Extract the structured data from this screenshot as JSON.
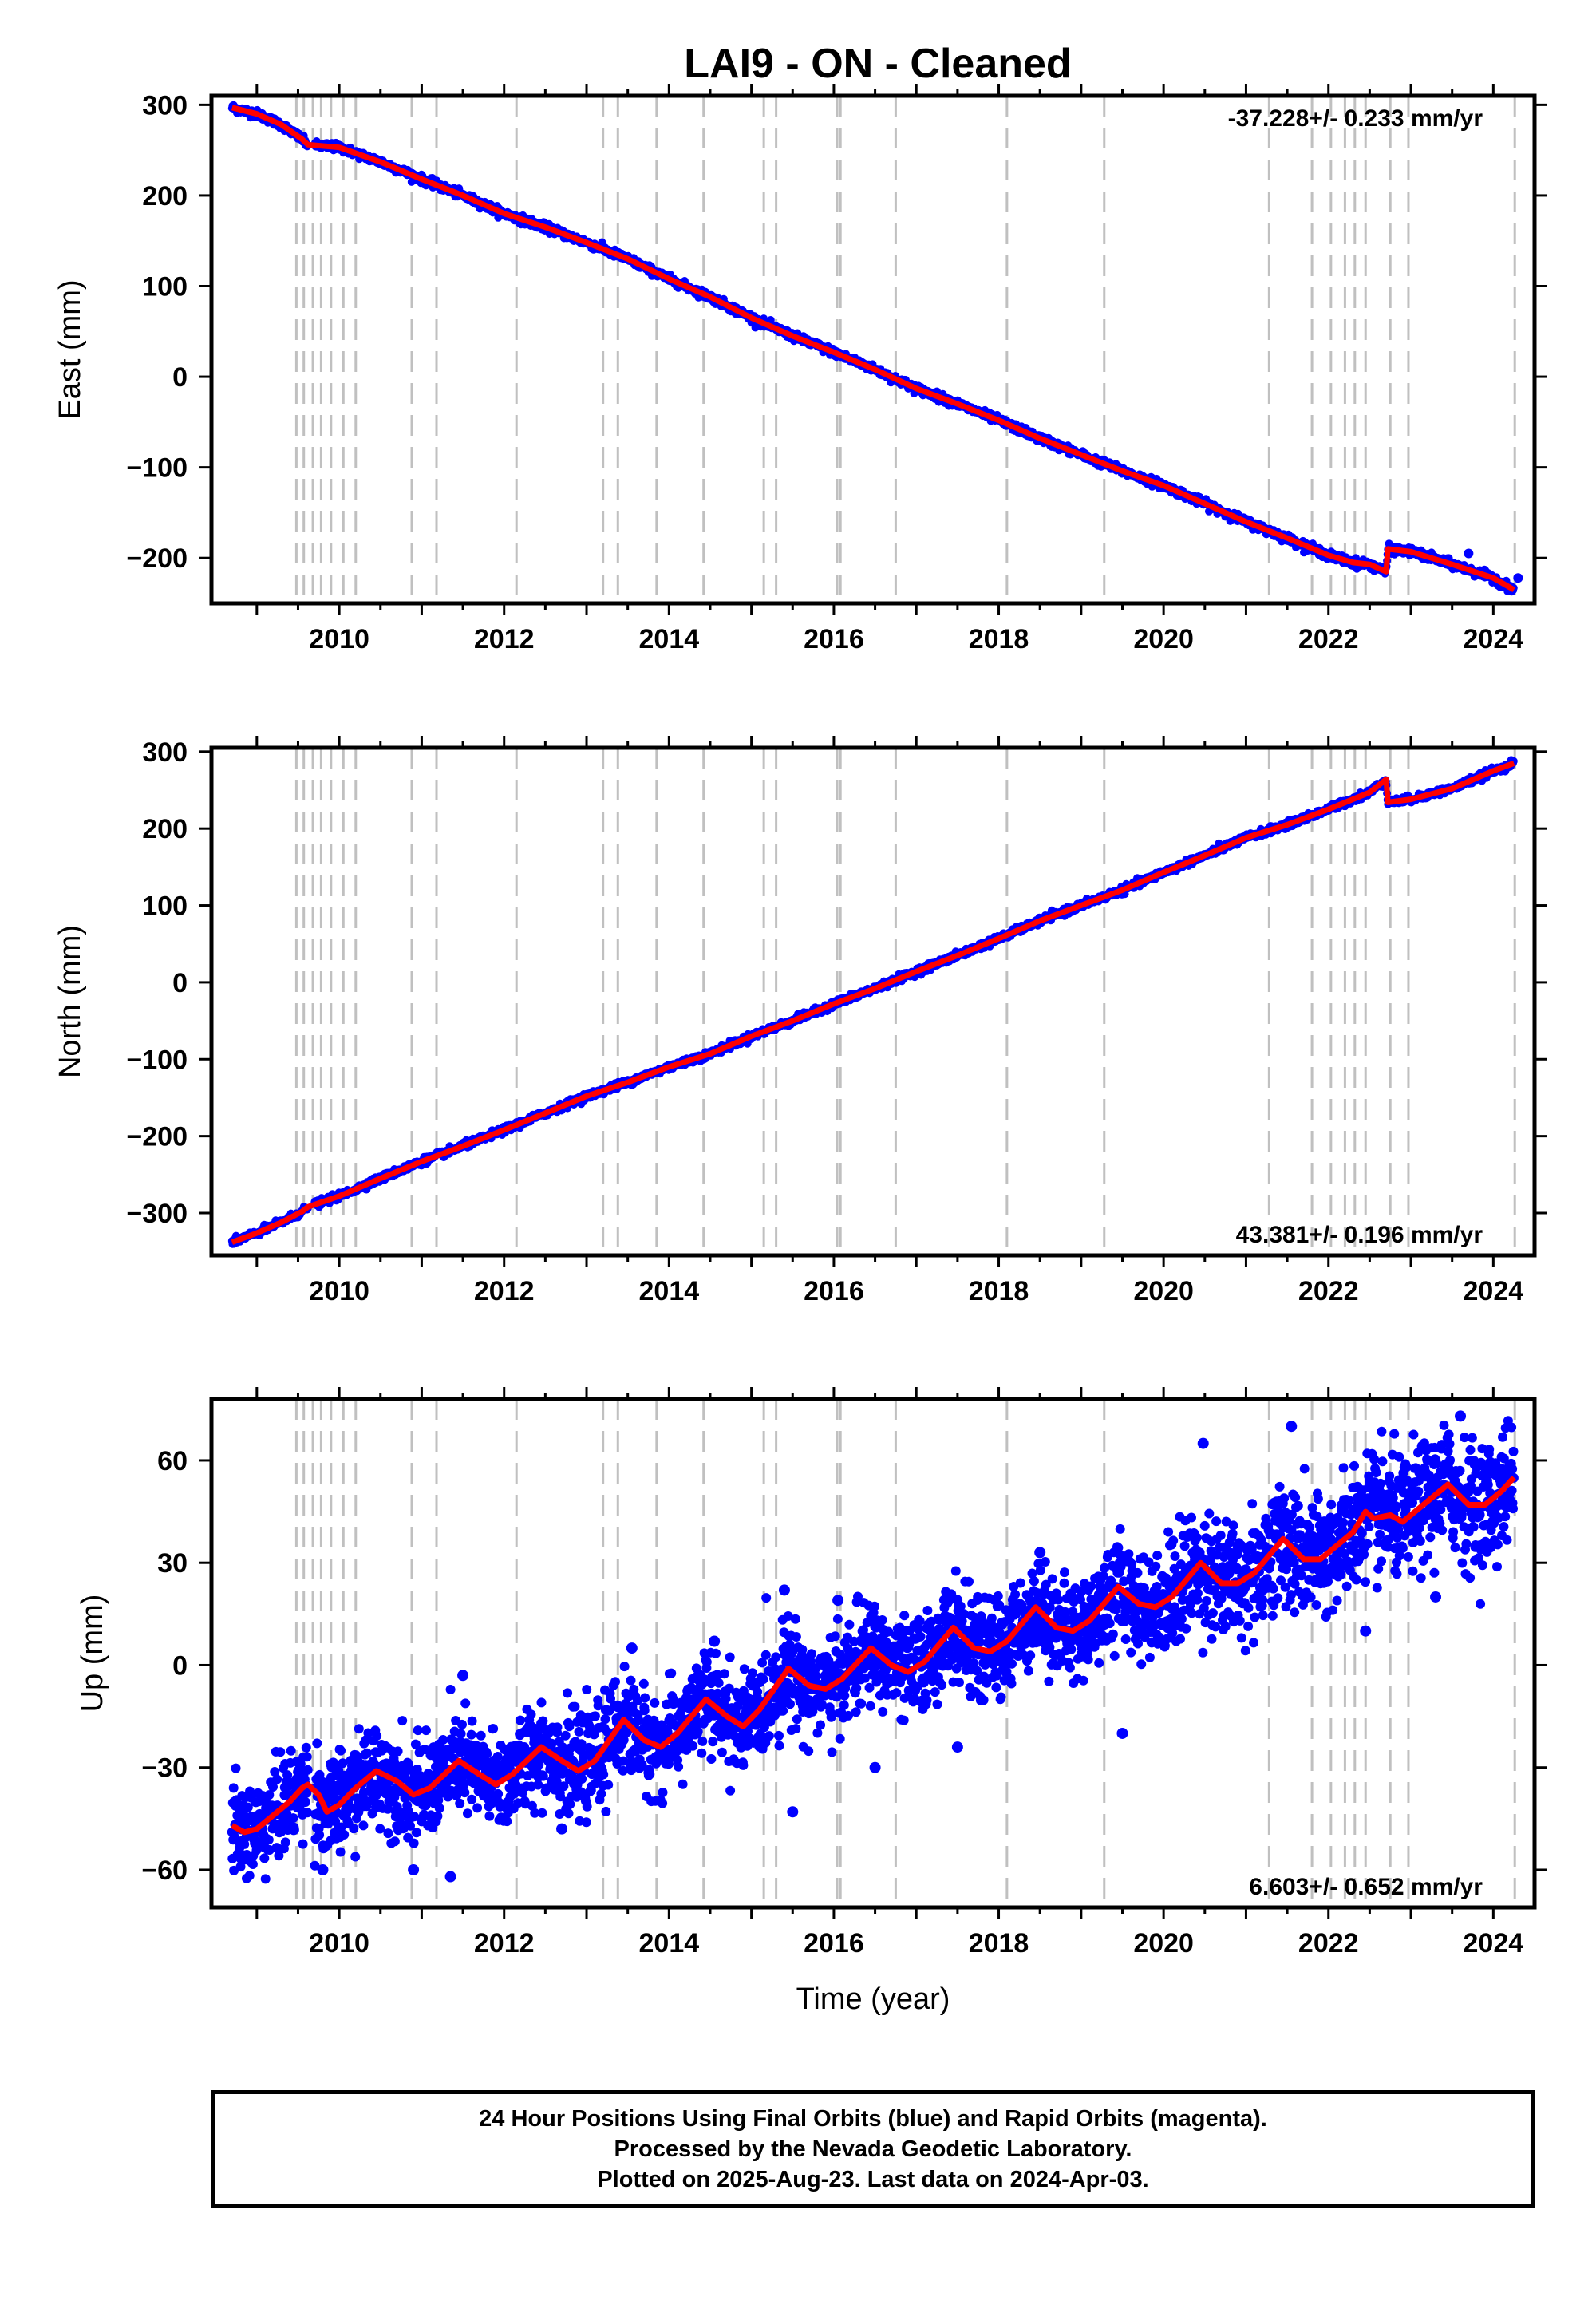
{
  "title": "LAI9  - ON - Cleaned",
  "colors": {
    "points": "#0000ff",
    "model": "#ff0000",
    "steps": "#c0c0c0",
    "frame": "#000000"
  },
  "footer": {
    "line1": "24 Hour Positions Using Final Orbits (blue) and Rapid Orbits (magenta).",
    "line2": "Processed by the Nevada Geodetic Laboratory.",
    "line3": "Plotted on 2025-Aug-23. Last data on 2024-Apr-03."
  },
  "chart_data": [
    {
      "type": "scatter",
      "component": "east",
      "ylabel": "East (mm)",
      "xlabel": "",
      "xlim": [
        2008.45,
        2024.5
      ],
      "ylim": [
        -250,
        310
      ],
      "x_ticks": [
        2010,
        2012,
        2014,
        2016,
        2018,
        2020,
        2022,
        2024
      ],
      "x_tick_labels": [
        "2010",
        "2012",
        "2014",
        "2016",
        "2018",
        "2020",
        "2022",
        "2024"
      ],
      "y_ticks": [
        300,
        200,
        100,
        0,
        -100,
        -200
      ],
      "y_tick_labels": [
        "300",
        "200",
        "100",
        "0",
        "−100",
        "−200"
      ],
      "rate_label": "-37.228+/- 0.233 mm/yr",
      "rate_label_position": "top-right",
      "x": [
        2008.7,
        2009.0,
        2009.3,
        2009.55,
        2009.62,
        2010.0,
        2010.5,
        2011.0,
        2011.5,
        2012.0,
        2012.5,
        2013.0,
        2013.5,
        2014.0,
        2014.5,
        2015.0,
        2015.5,
        2016.0,
        2016.5,
        2017.0,
        2017.5,
        2018.0,
        2018.5,
        2019.0,
        2019.5,
        2020.0,
        2020.5,
        2021.0,
        2021.5,
        2022.0,
        2022.3,
        2022.5,
        2022.7,
        2022.72,
        2023.0,
        2023.5,
        2024.0,
        2024.25
      ],
      "y": [
        297,
        290,
        278,
        262,
        256,
        253,
        237,
        218,
        200,
        180,
        165,
        148,
        130,
        108,
        88,
        65,
        45,
        27,
        8,
        -13,
        -30,
        -48,
        -68,
        -86,
        -104,
        -120,
        -140,
        -160,
        -178,
        -197,
        -205,
        -207,
        -215,
        -190,
        -193,
        -207,
        -222,
        -235
      ],
      "model": {
        "name": "",
        "x": [
          2008.7,
          2009.0,
          2009.3,
          2009.55,
          2009.62,
          2010.0,
          2010.5,
          2011.0,
          2011.5,
          2012.0,
          2012.5,
          2013.0,
          2013.5,
          2014.0,
          2014.5,
          2015.0,
          2015.5,
          2016.0,
          2016.5,
          2017.0,
          2017.5,
          2018.0,
          2018.5,
          2019.0,
          2019.5,
          2020.0,
          2020.5,
          2021.0,
          2021.5,
          2022.0,
          2022.3,
          2022.5,
          2022.7,
          2022.72,
          2023.0,
          2023.5,
          2024.0,
          2024.25
        ],
        "y": [
          297,
          290,
          278,
          262,
          256,
          253,
          237,
          218,
          200,
          180,
          165,
          148,
          130,
          108,
          88,
          65,
          45,
          27,
          8,
          -13,
          -30,
          -48,
          -68,
          -86,
          -104,
          -120,
          -140,
          -160,
          -178,
          -197,
          -205,
          -207,
          -215,
          -190,
          -193,
          -207,
          -222,
          -235
        ]
      },
      "outliers": [
        {
          "x": 2023.7,
          "y": -195
        },
        {
          "x": 2024.3,
          "y": -222
        }
      ],
      "step_epochs": [
        2009.48,
        2009.57,
        2009.68,
        2009.78,
        2009.9,
        2010.05,
        2010.2,
        2010.88,
        2011.18,
        2012.15,
        2013.2,
        2013.38,
        2013.85,
        2014.42,
        2015.15,
        2015.3,
        2016.04,
        2016.08,
        2016.75,
        2018.1,
        2019.28,
        2021.28,
        2021.8,
        2022.03,
        2022.2,
        2022.32,
        2022.45,
        2022.75,
        2022.97,
        2024.26
      ],
      "grid": false
    },
    {
      "type": "scatter",
      "component": "north",
      "ylabel": "North (mm)",
      "xlabel": "",
      "xlim": [
        2008.45,
        2024.5
      ],
      "ylim": [
        -355,
        305
      ],
      "x_ticks": [
        2010,
        2012,
        2014,
        2016,
        2018,
        2020,
        2022,
        2024
      ],
      "x_tick_labels": [
        "2010",
        "2012",
        "2014",
        "2016",
        "2018",
        "2020",
        "2022",
        "2024"
      ],
      "y_ticks": [
        300,
        200,
        100,
        0,
        -100,
        -200,
        -300
      ],
      "y_tick_labels": [
        "300",
        "200",
        "100",
        "0",
        "−100",
        "−200",
        "−300"
      ],
      "rate_label": "43.381+/- 0.196 mm/yr",
      "rate_label_position": "bottom-right",
      "x": [
        2008.7,
        2009.0,
        2009.3,
        2009.55,
        2009.62,
        2010.0,
        2010.5,
        2011.0,
        2011.5,
        2012.0,
        2012.5,
        2013.0,
        2013.5,
        2014.0,
        2014.5,
        2015.0,
        2015.5,
        2016.0,
        2016.5,
        2017.0,
        2017.5,
        2018.0,
        2018.5,
        2019.0,
        2019.5,
        2020.0,
        2020.5,
        2021.0,
        2021.5,
        2022.0,
        2022.5,
        2022.7,
        2022.72,
        2023.0,
        2023.5,
        2024.0,
        2024.25
      ],
      "y": [
        -338,
        -326,
        -312,
        -298,
        -292,
        -278,
        -255,
        -233,
        -213,
        -192,
        -170,
        -148,
        -130,
        -110,
        -93,
        -70,
        -50,
        -28,
        -8,
        14,
        35,
        57,
        80,
        100,
        120,
        143,
        165,
        188,
        205,
        225,
        247,
        264,
        234,
        238,
        252,
        275,
        285
      ],
      "model": {
        "name": "",
        "x": [
          2008.7,
          2009.0,
          2009.3,
          2009.55,
          2009.62,
          2010.0,
          2010.5,
          2011.0,
          2011.5,
          2012.0,
          2012.5,
          2013.0,
          2013.5,
          2014.0,
          2014.5,
          2015.0,
          2015.5,
          2016.0,
          2016.5,
          2017.0,
          2017.5,
          2018.0,
          2018.5,
          2019.0,
          2019.5,
          2020.0,
          2020.5,
          2021.0,
          2021.5,
          2022.0,
          2022.5,
          2022.7,
          2022.72,
          2023.0,
          2023.5,
          2024.0,
          2024.25
        ],
        "y": [
          -338,
          -326,
          -312,
          -298,
          -292,
          -278,
          -255,
          -233,
          -213,
          -192,
          -170,
          -148,
          -130,
          -110,
          -93,
          -70,
          -50,
          -28,
          -8,
          14,
          35,
          57,
          80,
          100,
          120,
          143,
          165,
          188,
          205,
          225,
          247,
          264,
          234,
          238,
          252,
          275,
          285
        ]
      },
      "outliers": [],
      "step_epochs": [
        2009.48,
        2009.57,
        2009.68,
        2009.78,
        2009.9,
        2010.05,
        2010.2,
        2010.88,
        2011.18,
        2012.15,
        2013.2,
        2013.38,
        2013.85,
        2014.42,
        2015.15,
        2015.3,
        2016.04,
        2016.08,
        2016.75,
        2018.1,
        2019.28,
        2021.28,
        2021.8,
        2022.03,
        2022.2,
        2022.32,
        2022.45,
        2022.75,
        2022.97,
        2024.26
      ],
      "grid": false
    },
    {
      "type": "scatter",
      "component": "up",
      "ylabel": "Up (mm)",
      "xlabel": "Time (year)",
      "xlim": [
        2008.45,
        2024.5
      ],
      "ylim": [
        -71,
        78
      ],
      "x_ticks": [
        2010,
        2012,
        2014,
        2016,
        2018,
        2020,
        2022,
        2024
      ],
      "x_tick_labels": [
        "2010",
        "2012",
        "2014",
        "2016",
        "2018",
        "2020",
        "2022",
        "2024"
      ],
      "y_ticks": [
        60,
        30,
        0,
        -30,
        -60
      ],
      "y_tick_labels": [
        "60",
        "30",
        "0",
        "−30",
        "−60"
      ],
      "rate_label": "6.603+/- 0.652 mm/yr",
      "rate_label_position": "bottom-right",
      "scatter_spread_mm": 7,
      "model": {
        "name": "",
        "x": [
          2008.7,
          2008.85,
          2009.0,
          2009.2,
          2009.4,
          2009.55,
          2009.62,
          2009.75,
          2009.85,
          2010.0,
          2010.2,
          2010.45,
          2010.7,
          2010.9,
          2011.1,
          2011.45,
          2011.7,
          2011.9,
          2012.1,
          2012.45,
          2012.7,
          2012.9,
          2013.1,
          2013.45,
          2013.7,
          2013.9,
          2014.1,
          2014.45,
          2014.7,
          2014.9,
          2015.1,
          2015.45,
          2015.7,
          2015.9,
          2016.1,
          2016.45,
          2016.7,
          2016.9,
          2017.1,
          2017.45,
          2017.7,
          2017.9,
          2018.1,
          2018.45,
          2018.7,
          2018.9,
          2019.1,
          2019.45,
          2019.7,
          2019.9,
          2020.1,
          2020.45,
          2020.7,
          2020.9,
          2021.1,
          2021.45,
          2021.7,
          2021.9,
          2022.1,
          2022.3,
          2022.45,
          2022.55,
          2022.75,
          2022.9,
          2023.1,
          2023.45,
          2023.7,
          2023.9,
          2024.1,
          2024.25
        ],
        "y": [
          -47,
          -49,
          -48,
          -44,
          -40,
          -36,
          -35,
          -38,
          -43,
          -41,
          -36,
          -31,
          -34,
          -38,
          -36,
          -28,
          -32,
          -35,
          -32,
          -24,
          -28,
          -31,
          -28,
          -16,
          -22,
          -24,
          -20,
          -10,
          -15,
          -18,
          -13,
          -1,
          -6,
          -7,
          -4,
          5,
          0,
          -2,
          1,
          11,
          5,
          4,
          7,
          17,
          11,
          10,
          13,
          23,
          18,
          17,
          20,
          30,
          24,
          24,
          27,
          37,
          31,
          31,
          35,
          39,
          45,
          43,
          44,
          42,
          46,
          53,
          47,
          47,
          51,
          55
        ]
      },
      "outliers": [
        {
          "x": 2009.8,
          "y": -60
        },
        {
          "x": 2010.9,
          "y": -60
        },
        {
          "x": 2011.35,
          "y": -62
        },
        {
          "x": 2011.5,
          "y": -3
        },
        {
          "x": 2012.7,
          "y": -48
        },
        {
          "x": 2013.55,
          "y": 5
        },
        {
          "x": 2014.55,
          "y": 7
        },
        {
          "x": 2015.4,
          "y": 22
        },
        {
          "x": 2015.5,
          "y": -43
        },
        {
          "x": 2016.05,
          "y": 19
        },
        {
          "x": 2016.5,
          "y": -30
        },
        {
          "x": 2017.5,
          "y": -24
        },
        {
          "x": 2018.5,
          "y": 33
        },
        {
          "x": 2019.5,
          "y": -20
        },
        {
          "x": 2020.48,
          "y": 65
        },
        {
          "x": 2021.55,
          "y": 70
        },
        {
          "x": 2022.45,
          "y": 10
        },
        {
          "x": 2023.3,
          "y": 20
        },
        {
          "x": 2023.6,
          "y": 73
        }
      ],
      "step_epochs": [
        2009.48,
        2009.57,
        2009.68,
        2009.78,
        2009.9,
        2010.05,
        2010.2,
        2010.88,
        2011.18,
        2012.15,
        2013.2,
        2013.38,
        2013.85,
        2014.42,
        2015.15,
        2015.3,
        2016.04,
        2016.08,
        2016.75,
        2018.1,
        2019.28,
        2021.28,
        2021.8,
        2022.03,
        2022.2,
        2022.32,
        2022.45,
        2022.75,
        2022.97,
        2024.26
      ],
      "grid": false
    }
  ]
}
